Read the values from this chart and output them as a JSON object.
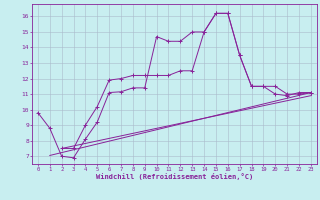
{
  "background_color": "#c8eef0",
  "grid_color": "#aabbcc",
  "line_color": "#882299",
  "xlim": [
    -0.5,
    23.5
  ],
  "ylim": [
    6.5,
    16.8
  ],
  "xticks": [
    0,
    1,
    2,
    3,
    4,
    5,
    6,
    7,
    8,
    9,
    10,
    11,
    12,
    13,
    14,
    15,
    16,
    17,
    18,
    19,
    20,
    21,
    22,
    23
  ],
  "yticks": [
    7,
    8,
    9,
    10,
    11,
    12,
    13,
    14,
    15,
    16
  ],
  "xlabel": "Windchill (Refroidissement éolien,°C)",
  "line1": [
    [
      0,
      9.8
    ],
    [
      1,
      8.8
    ],
    [
      2,
      7.0
    ],
    [
      3,
      6.9
    ],
    [
      4,
      8.1
    ],
    [
      5,
      9.2
    ],
    [
      6,
      11.1
    ],
    [
      7,
      11.15
    ],
    [
      8,
      11.4
    ],
    [
      9,
      11.4
    ],
    [
      10,
      14.7
    ],
    [
      11,
      14.4
    ],
    [
      12,
      14.4
    ],
    [
      13,
      15.0
    ],
    [
      14,
      15.0
    ],
    [
      15,
      16.2
    ],
    [
      16,
      16.2
    ],
    [
      17,
      13.5
    ],
    [
      18,
      11.5
    ],
    [
      19,
      11.5
    ],
    [
      20,
      11.0
    ],
    [
      21,
      10.9
    ],
    [
      22,
      11.1
    ],
    [
      23,
      11.1
    ]
  ],
  "line2": [
    [
      2,
      7.5
    ],
    [
      3,
      7.5
    ],
    [
      4,
      9.0
    ],
    [
      5,
      10.2
    ],
    [
      6,
      11.9
    ],
    [
      7,
      12.0
    ],
    [
      8,
      12.2
    ],
    [
      9,
      12.2
    ],
    [
      10,
      12.2
    ],
    [
      11,
      12.2
    ],
    [
      12,
      12.5
    ],
    [
      13,
      12.5
    ],
    [
      14,
      15.0
    ],
    [
      15,
      16.2
    ],
    [
      16,
      16.2
    ],
    [
      17,
      13.5
    ],
    [
      18,
      11.5
    ],
    [
      19,
      11.5
    ],
    [
      20,
      11.5
    ],
    [
      21,
      11.0
    ],
    [
      22,
      11.0
    ],
    [
      23,
      11.1
    ]
  ],
  "line3_straight": [
    [
      1,
      7.05
    ],
    [
      23,
      11.1
    ]
  ],
  "line4_straight": [
    [
      2,
      7.5
    ],
    [
      23,
      10.9
    ]
  ]
}
